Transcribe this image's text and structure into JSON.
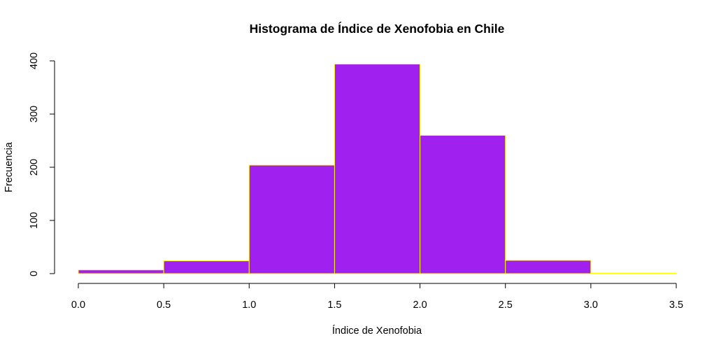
{
  "chart_data": {
    "type": "bar",
    "title": "Histograma de Índice de Xenofobia en Chile",
    "xlabel": "Índice de Xenofobia",
    "ylabel": "Frecuencia",
    "bins": [
      {
        "start": 0.0,
        "end": 0.5,
        "count": 7
      },
      {
        "start": 0.5,
        "end": 1.0,
        "count": 24
      },
      {
        "start": 1.0,
        "end": 1.5,
        "count": 204
      },
      {
        "start": 1.5,
        "end": 2.0,
        "count": 394
      },
      {
        "start": 2.0,
        "end": 2.5,
        "count": 260
      },
      {
        "start": 2.5,
        "end": 3.0,
        "count": 25
      },
      {
        "start": 3.0,
        "end": 3.5,
        "count": 1
      }
    ],
    "xlim": [
      0.0,
      3.5
    ],
    "ylim": [
      0,
      400
    ],
    "x_ticks": [
      "0.0",
      "0.5",
      "1.0",
      "1.5",
      "2.0",
      "2.5",
      "3.0",
      "3.5"
    ],
    "y_ticks": [
      "0",
      "100",
      "200",
      "300",
      "400"
    ],
    "grid": false,
    "bar_fill": "#A020F0",
    "bar_border": "#FFFF00"
  }
}
